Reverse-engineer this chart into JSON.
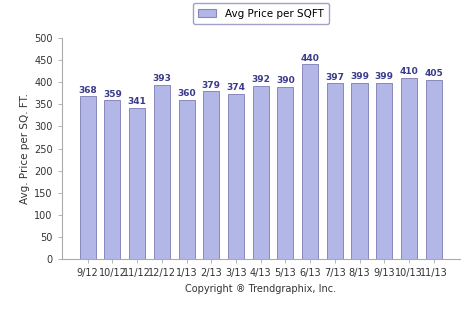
{
  "categories": [
    "9/12",
    "10/12",
    "11/12",
    "12/12",
    "1/13",
    "2/13",
    "3/13",
    "4/13",
    "5/13",
    "6/13",
    "7/13",
    "8/13",
    "9/13",
    "10/13",
    "11/13"
  ],
  "values": [
    368,
    359,
    341,
    393,
    360,
    379,
    374,
    392,
    390,
    440,
    397,
    399,
    399,
    410,
    405
  ],
  "bar_color": "#b3b7e8",
  "bar_edgecolor": "#8888bb",
  "ylabel": "Avg. Price per SQ. FT.",
  "xlabel": "Copyright ® Trendgraphix, Inc.",
  "legend_label": "Avg Price per SQFT",
  "ylim": [
    0,
    500
  ],
  "yticks": [
    0,
    50,
    100,
    150,
    200,
    250,
    300,
    350,
    400,
    450,
    500
  ],
  "label_color": "#3a3a8c",
  "background_color": "#ffffff",
  "label_fontsize": 6.5,
  "axis_fontsize": 7,
  "ylabel_fontsize": 7.5
}
